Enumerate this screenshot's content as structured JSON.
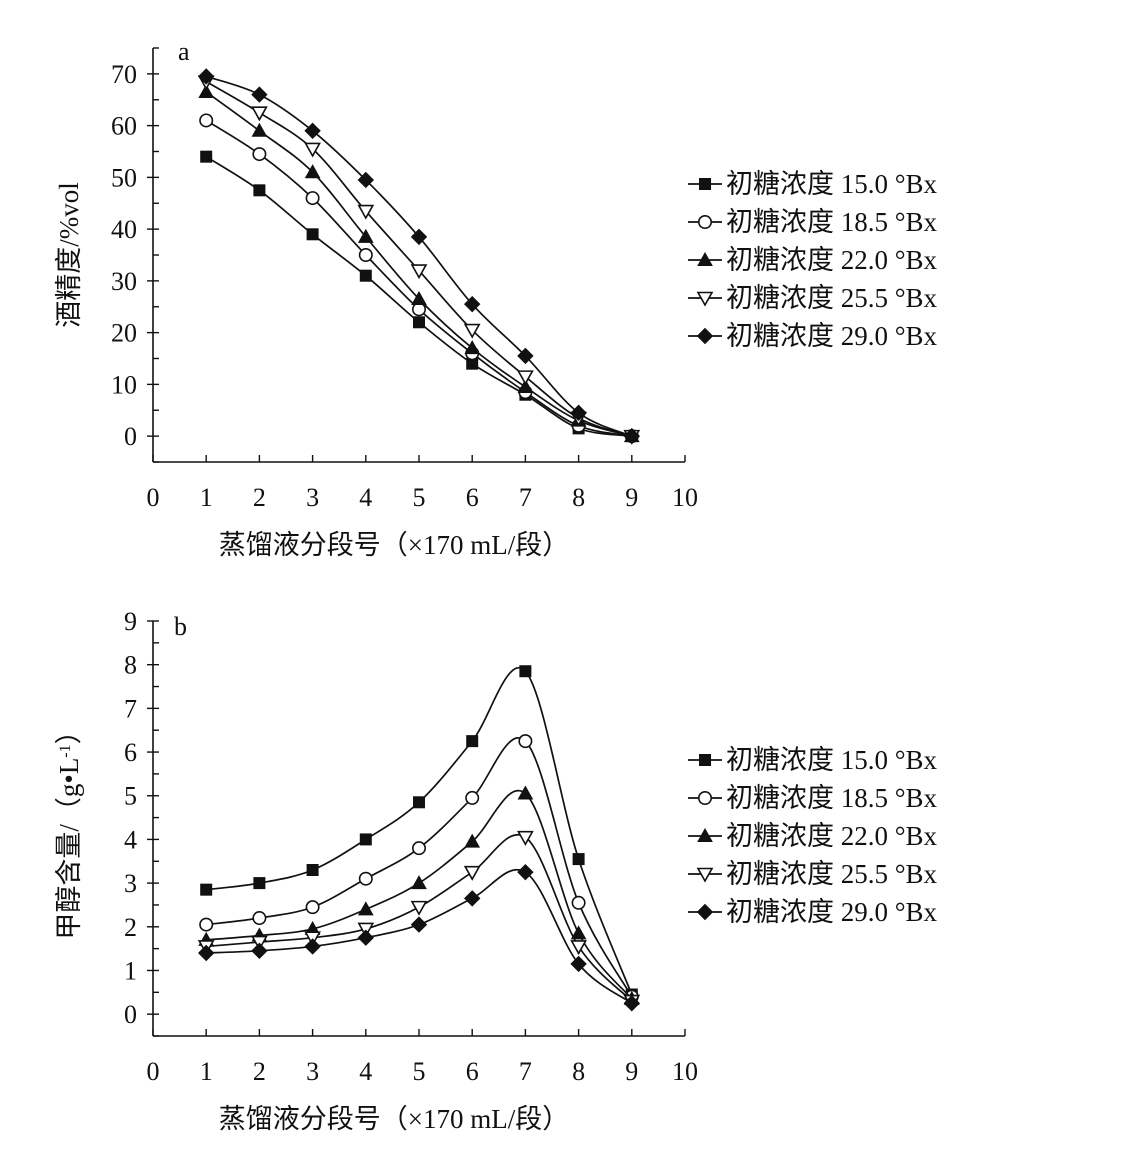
{
  "chart_data": [
    {
      "type": "line",
      "panel": "a",
      "title": "",
      "xlabel": "蒸馏液分段号（×170 mL/段）",
      "ylabel": "酒精度/%vol",
      "xlim": [
        0,
        10
      ],
      "ylim": [
        -5,
        75
      ],
      "xticks": [
        0,
        1,
        2,
        3,
        4,
        5,
        6,
        7,
        8,
        9,
        10
      ],
      "yticks": [
        0,
        10,
        20,
        30,
        40,
        50,
        60,
        70
      ],
      "grid": false,
      "legend_position": "right",
      "x": [
        1,
        2,
        3,
        4,
        5,
        6,
        7,
        8,
        9
      ],
      "series": [
        {
          "name": "初糖浓度 15.0 °Bx",
          "marker": "square-filled",
          "values": [
            54,
            47.5,
            39,
            31,
            22,
            14,
            8,
            1.5,
            0
          ]
        },
        {
          "name": "初糖浓度 18.5 °Bx",
          "marker": "circle-open",
          "values": [
            61,
            54.5,
            46,
            35,
            24.5,
            16,
            8.5,
            2,
            0
          ]
        },
        {
          "name": "初糖浓度 22.0 °Bx",
          "marker": "triangle-filled",
          "values": [
            66.5,
            59,
            51,
            38.5,
            26.5,
            17,
            9.5,
            3,
            0
          ]
        },
        {
          "name": "初糖浓度 25.5 °Bx",
          "marker": "triangle-down-open",
          "values": [
            68.5,
            62.5,
            55.5,
            43.5,
            32,
            20.5,
            11.5,
            3.5,
            0
          ]
        },
        {
          "name": "初糖浓度 29.0 °Bx",
          "marker": "diamond-filled",
          "values": [
            69.5,
            66,
            59,
            49.5,
            38.5,
            25.5,
            15.5,
            4.5,
            0
          ]
        }
      ]
    },
    {
      "type": "line",
      "panel": "b",
      "title": "",
      "xlabel": "蒸馏液分段号（×170 mL/段）",
      "ylabel": "甲醇含量/（g•L",
      "ylabel_sup": "-1",
      "ylabel_end": "）",
      "xlim": [
        0,
        10
      ],
      "ylim": [
        -0.5,
        9
      ],
      "xticks": [
        0,
        1,
        2,
        3,
        4,
        5,
        6,
        7,
        8,
        9,
        10
      ],
      "yticks": [
        0,
        1,
        2,
        3,
        4,
        5,
        6,
        7,
        8,
        9
      ],
      "grid": false,
      "legend_position": "right",
      "x": [
        1,
        2,
        3,
        4,
        5,
        6,
        7,
        8,
        9
      ],
      "series": [
        {
          "name": "初糖浓度 15.0 °Bx",
          "marker": "square-filled",
          "values": [
            2.85,
            3.0,
            3.3,
            4.0,
            4.85,
            6.25,
            7.85,
            3.55,
            0.45
          ]
        },
        {
          "name": "初糖浓度 18.5 °Bx",
          "marker": "circle-open",
          "values": [
            2.05,
            2.2,
            2.45,
            3.1,
            3.8,
            4.95,
            6.25,
            2.55,
            0.4
          ]
        },
        {
          "name": "初糖浓度 22.0 °Bx",
          "marker": "triangle-filled",
          "values": [
            1.7,
            1.8,
            1.95,
            2.4,
            3.0,
            3.95,
            5.05,
            1.85,
            0.35
          ]
        },
        {
          "name": "初糖浓度 25.5 °Bx",
          "marker": "triangle-down-open",
          "values": [
            1.55,
            1.65,
            1.75,
            1.95,
            2.45,
            3.25,
            4.05,
            1.55,
            0.3
          ]
        },
        {
          "name": "初糖浓度 29.0 °Bx",
          "marker": "diamond-filled",
          "values": [
            1.4,
            1.45,
            1.55,
            1.75,
            2.05,
            2.65,
            3.25,
            1.15,
            0.25
          ]
        }
      ]
    }
  ]
}
